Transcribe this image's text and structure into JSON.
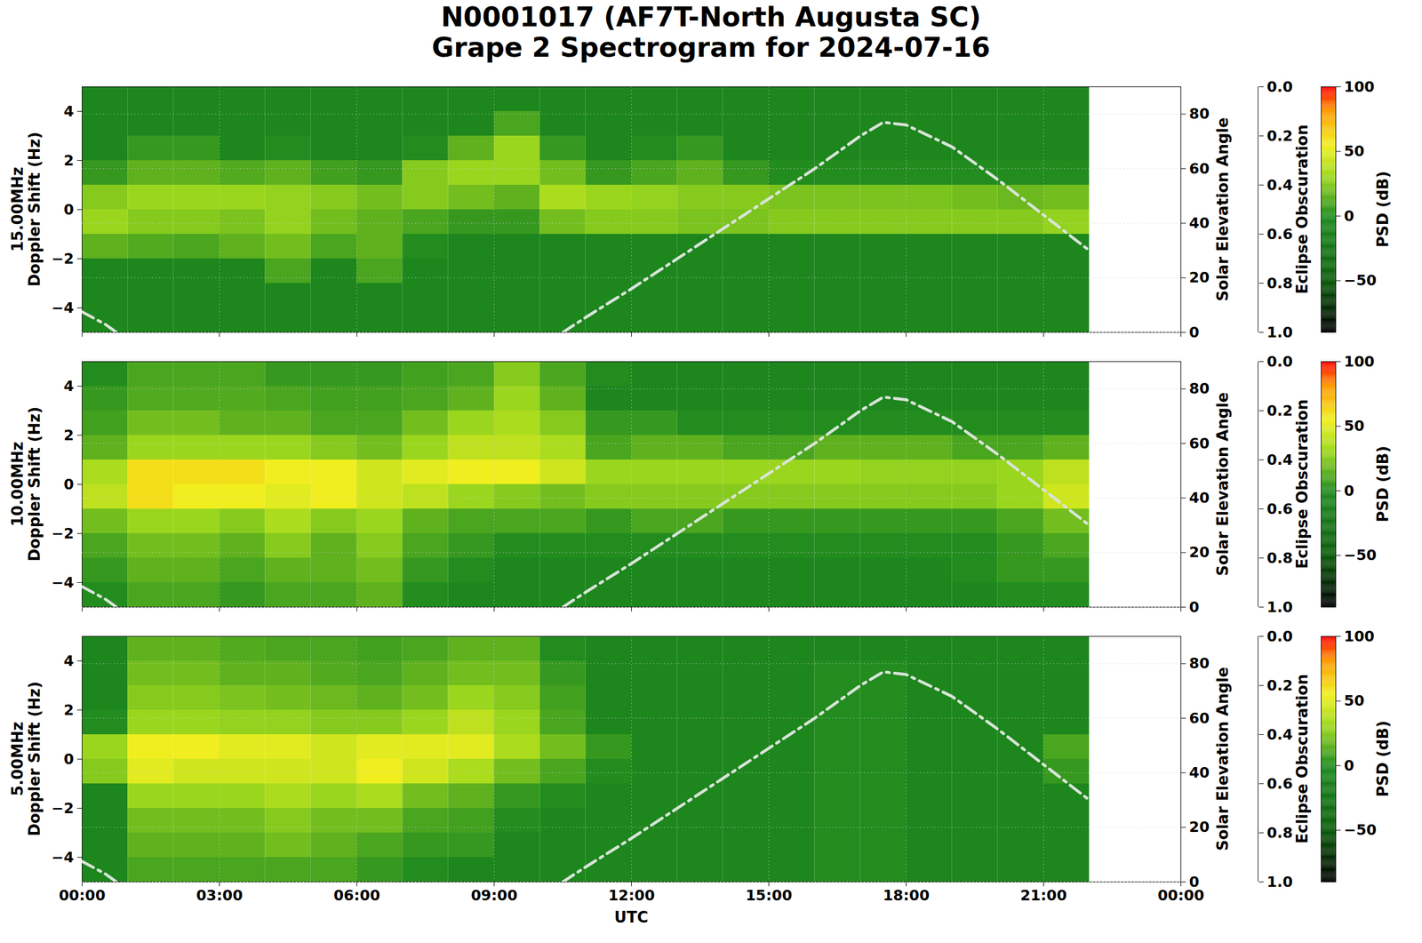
{
  "title": "N0001017 (AF7T-North Augusta SC)",
  "subtitle": "Grape 2 Spectrogram for 2024-07-16",
  "chart_data": [
    {
      "type": "heatmap",
      "frequency": "15.00MHz",
      "ylabel": "Doppler Shift (Hz)",
      "xlim": [
        0,
        24
      ],
      "xticks": [
        0,
        3,
        6,
        9,
        12,
        15,
        18,
        21,
        24
      ],
      "tick_labels": "y",
      "ylim": [
        -5,
        5
      ],
      "yticks": [
        -4,
        -2,
        0,
        2,
        4
      ],
      "y2label": "Solar Elevation Angle",
      "y2lim": [
        0,
        90
      ],
      "y2ticks": [
        0,
        20,
        40,
        60,
        80
      ],
      "grid": true,
      "time_bins": [
        0,
        1,
        2,
        3,
        4,
        5,
        6,
        7,
        8,
        9,
        10,
        11,
        12,
        13,
        14,
        15,
        16,
        17,
        18,
        19,
        20,
        21,
        22
      ],
      "doppler_bins": [
        5,
        4,
        3,
        2,
        1,
        0,
        -1,
        -2,
        -3,
        -4,
        -5
      ],
      "psd": [
        [
          -5,
          -5,
          -5,
          -5,
          -5,
          -5,
          -5,
          -5,
          -5,
          -5,
          -5,
          -5,
          -5,
          -5,
          -5,
          -5,
          -5,
          -5,
          -5,
          -5,
          -5,
          -5
        ],
        [
          -5,
          -5,
          -5,
          -5,
          -5,
          -5,
          -5,
          -5,
          -5,
          10,
          -5,
          -5,
          -5,
          -5,
          -5,
          -5,
          -5,
          -5,
          -5,
          -5,
          -5,
          -5
        ],
        [
          -5,
          5,
          5,
          -5,
          0,
          -5,
          -5,
          0,
          15,
          30,
          5,
          -5,
          0,
          5,
          -5,
          -5,
          -5,
          -5,
          -5,
          -5,
          -5,
          -5
        ],
        [
          5,
          15,
          15,
          12,
          15,
          8,
          5,
          25,
          30,
          30,
          20,
          5,
          10,
          15,
          5,
          0,
          0,
          0,
          0,
          0,
          0,
          0
        ],
        [
          25,
          30,
          30,
          30,
          28,
          25,
          20,
          25,
          20,
          15,
          35,
          30,
          28,
          25,
          25,
          22,
          22,
          22,
          22,
          20,
          18,
          20
        ],
        [
          30,
          25,
          25,
          22,
          28,
          20,
          15,
          10,
          5,
          5,
          20,
          25,
          25,
          22,
          22,
          25,
          25,
          25,
          25,
          25,
          25,
          28
        ],
        [
          15,
          12,
          10,
          15,
          20,
          10,
          15,
          0,
          -5,
          -5,
          -5,
          -5,
          -5,
          -5,
          -5,
          -5,
          -5,
          -5,
          -5,
          -5,
          -5,
          -5
        ],
        [
          -5,
          -5,
          -5,
          -5,
          10,
          -5,
          10,
          -5,
          -5,
          -5,
          -5,
          -5,
          -5,
          -5,
          -5,
          -5,
          -5,
          -5,
          -5,
          -5,
          -5,
          -5
        ],
        [
          -5,
          -5,
          -5,
          -5,
          -5,
          -5,
          -5,
          -5,
          -5,
          -5,
          -5,
          -5,
          -5,
          -5,
          -5,
          -5,
          -5,
          -5,
          -5,
          -5,
          -5,
          -5
        ],
        [
          -5,
          -5,
          -5,
          -5,
          -5,
          -5,
          -5,
          -5,
          -5,
          -5,
          -5,
          -5,
          -5,
          -5,
          -5,
          -5,
          -5,
          -5,
          -5,
          -5,
          -5,
          -5
        ]
      ],
      "solar_elevation": {
        "color": "#d9e4d9",
        "line_style": "dashdot",
        "x": [
          0,
          0.5,
          0.75,
          1,
          10.5,
          11,
          12,
          13,
          14,
          15,
          16,
          17,
          17.5,
          18,
          19,
          20,
          21,
          22
        ],
        "values": [
          7.5,
          3,
          0,
          null,
          0,
          5.5,
          16,
          27,
          38,
          49,
          60,
          72,
          77,
          76,
          68,
          56,
          43,
          30
        ]
      },
      "eclipse_axis": {
        "label": "Eclipse Obscuration",
        "lim": [
          1,
          0
        ],
        "ticks": [
          {
            "value": 0,
            "label": "0.0"
          },
          {
            "value": 0.2,
            "label": "0.2"
          },
          {
            "value": 0.4,
            "label": "0.4"
          },
          {
            "value": 0.6,
            "label": "0.6"
          },
          {
            "value": 0.8,
            "label": "0.8"
          },
          {
            "value": 1,
            "label": "1.0"
          }
        ]
      },
      "colorbar": {
        "label": "PSD (dB)",
        "lim": [
          -90,
          100
        ],
        "ticks": [
          -50,
          0,
          50,
          100
        ]
      }
    },
    {
      "type": "heatmap",
      "frequency": "10.00MHz",
      "ylabel": "Doppler Shift (Hz)",
      "xlim": [
        0,
        24
      ],
      "xticks": [
        0,
        3,
        6,
        9,
        12,
        15,
        18,
        21,
        24
      ],
      "tick_labels": "y",
      "ylim": [
        -5,
        5
      ],
      "yticks": [
        -4,
        -2,
        0,
        2,
        4
      ],
      "y2label": "Solar Elevation Angle",
      "y2lim": [
        0,
        90
      ],
      "y2ticks": [
        0,
        20,
        40,
        60,
        80
      ],
      "grid": true,
      "time_bins": [
        0,
        1,
        2,
        3,
        4,
        5,
        6,
        7,
        8,
        9,
        10,
        11,
        12,
        13,
        14,
        15,
        16,
        17,
        18,
        19,
        20,
        21,
        22
      ],
      "doppler_bins": [
        5,
        4,
        3,
        2,
        1,
        0,
        -1,
        -2,
        -3,
        -4,
        -5
      ],
      "psd": [
        [
          0,
          10,
          10,
          10,
          5,
          5,
          5,
          8,
          10,
          25,
          10,
          0,
          -5,
          -5,
          -5,
          -5,
          -5,
          -5,
          -5,
          -5,
          -5,
          -5
        ],
        [
          5,
          12,
          12,
          12,
          10,
          8,
          8,
          10,
          15,
          30,
          15,
          -5,
          -5,
          -5,
          -5,
          -5,
          -5,
          -5,
          -5,
          -5,
          -5,
          -5
        ],
        [
          8,
          20,
          20,
          15,
          15,
          10,
          10,
          20,
          30,
          35,
          25,
          5,
          5,
          0,
          0,
          0,
          0,
          0,
          0,
          0,
          0,
          0
        ],
        [
          15,
          30,
          30,
          30,
          30,
          25,
          20,
          30,
          40,
          40,
          35,
          10,
          15,
          15,
          10,
          10,
          15,
          15,
          15,
          10,
          10,
          15
        ],
        [
          35,
          60,
          60,
          60,
          55,
          55,
          45,
          50,
          55,
          55,
          45,
          30,
          30,
          30,
          30,
          30,
          30,
          28,
          28,
          28,
          30,
          40
        ],
        [
          40,
          60,
          55,
          55,
          50,
          55,
          45,
          40,
          30,
          25,
          20,
          25,
          25,
          25,
          25,
          25,
          25,
          25,
          25,
          25,
          30,
          45
        ],
        [
          20,
          30,
          30,
          25,
          35,
          25,
          30,
          15,
          10,
          10,
          10,
          5,
          10,
          10,
          5,
          5,
          5,
          5,
          5,
          5,
          10,
          20
        ],
        [
          10,
          20,
          20,
          15,
          25,
          15,
          25,
          10,
          5,
          0,
          0,
          0,
          0,
          0,
          0,
          0,
          0,
          0,
          0,
          0,
          5,
          10
        ],
        [
          5,
          15,
          15,
          10,
          15,
          15,
          20,
          5,
          0,
          -5,
          -5,
          -5,
          -5,
          -5,
          -5,
          -5,
          -5,
          -5,
          -5,
          0,
          5,
          5
        ],
        [
          0,
          10,
          10,
          5,
          10,
          10,
          15,
          0,
          -5,
          -5,
          -5,
          -5,
          -5,
          -5,
          -5,
          -5,
          -5,
          -5,
          -5,
          -5,
          0,
          0
        ]
      ],
      "solar_elevation": {
        "color": "#d9e4d9",
        "line_style": "dashdot",
        "x": [
          0,
          0.5,
          0.75,
          1,
          10.5,
          11,
          12,
          13,
          14,
          15,
          16,
          17,
          17.5,
          18,
          19,
          20,
          21,
          22
        ],
        "values": [
          7.5,
          3,
          0,
          null,
          0,
          5.5,
          16,
          27,
          38,
          49,
          60,
          72,
          77,
          76,
          68,
          56,
          43,
          30
        ]
      },
      "eclipse_axis": {
        "label": "Eclipse Obscuration",
        "lim": [
          1,
          0
        ],
        "ticks": [
          {
            "value": 0,
            "label": "0.0"
          },
          {
            "value": 0.2,
            "label": "0.2"
          },
          {
            "value": 0.4,
            "label": "0.4"
          },
          {
            "value": 0.6,
            "label": "0.6"
          },
          {
            "value": 0.8,
            "label": "0.8"
          },
          {
            "value": 1,
            "label": "1.0"
          }
        ]
      },
      "colorbar": {
        "label": "PSD (dB)",
        "lim": [
          -90,
          100
        ],
        "ticks": [
          -50,
          0,
          50,
          100
        ]
      }
    },
    {
      "type": "heatmap",
      "frequency": "5.00MHz",
      "ylabel": "Doppler Shift (Hz)",
      "xlabel": "UTC",
      "xlim": [
        0,
        24
      ],
      "xticks": [
        {
          "value": 0,
          "label": "00:00"
        },
        {
          "value": 3,
          "label": "03:00"
        },
        {
          "value": 6,
          "label": "06:00"
        },
        {
          "value": 9,
          "label": "09:00"
        },
        {
          "value": 12,
          "label": "12:00"
        },
        {
          "value": 15,
          "label": "15:00"
        },
        {
          "value": 18,
          "label": "18:00"
        },
        {
          "value": 21,
          "label": "21:00"
        },
        {
          "value": 24,
          "label": "00:00"
        }
      ],
      "ylim": [
        -5,
        5
      ],
      "yticks": [
        -4,
        -2,
        0,
        2,
        4
      ],
      "y2label": "Solar Elevation Angle",
      "y2lim": [
        0,
        90
      ],
      "y2ticks": [
        0,
        20,
        40,
        60,
        80
      ],
      "grid": true,
      "time_bins": [
        0,
        1,
        2,
        3,
        4,
        5,
        6,
        7,
        8,
        9,
        10,
        11,
        12,
        13,
        14,
        15,
        16,
        17,
        18,
        19,
        20,
        21,
        22
      ],
      "doppler_bins": [
        5,
        4,
        3,
        2,
        1,
        0,
        -1,
        -2,
        -3,
        -4,
        -5
      ],
      "psd": [
        [
          -5,
          15,
          15,
          12,
          10,
          10,
          8,
          10,
          15,
          15,
          0,
          -5,
          -5,
          -5,
          -5,
          -5,
          -5,
          -5,
          -5,
          -5,
          -5,
          -5
        ],
        [
          -5,
          20,
          20,
          15,
          15,
          12,
          10,
          15,
          20,
          20,
          5,
          -5,
          -5,
          -5,
          -5,
          -5,
          0,
          0,
          -5,
          -5,
          -5,
          -5
        ],
        [
          -5,
          25,
          25,
          22,
          20,
          18,
          15,
          20,
          30,
          25,
          8,
          -5,
          -5,
          -5,
          -5,
          -5,
          0,
          0,
          -5,
          -5,
          -5,
          -5
        ],
        [
          0,
          30,
          30,
          28,
          28,
          25,
          25,
          30,
          40,
          30,
          10,
          -5,
          -5,
          -5,
          -5,
          -5,
          0,
          0,
          -5,
          -5,
          -5,
          -5
        ],
        [
          30,
          55,
          55,
          50,
          50,
          45,
          50,
          50,
          50,
          35,
          20,
          5,
          -5,
          -5,
          -5,
          -5,
          0,
          0,
          -5,
          -5,
          -5,
          10
        ],
        [
          25,
          50,
          45,
          45,
          45,
          45,
          55,
          45,
          35,
          20,
          10,
          0,
          -5,
          -5,
          -5,
          -5,
          0,
          0,
          -5,
          -5,
          -5,
          5
        ],
        [
          -5,
          30,
          30,
          30,
          35,
          30,
          35,
          20,
          15,
          5,
          0,
          -5,
          -5,
          -5,
          -5,
          -5,
          0,
          0,
          -5,
          -5,
          -5,
          -5
        ],
        [
          -5,
          20,
          20,
          20,
          25,
          20,
          20,
          10,
          8,
          0,
          -5,
          -5,
          -5,
          -5,
          -5,
          -5,
          0,
          0,
          -5,
          -5,
          -5,
          -5
        ],
        [
          -5,
          15,
          15,
          15,
          20,
          15,
          10,
          5,
          5,
          -5,
          -5,
          -5,
          -5,
          -5,
          -5,
          -5,
          0,
          0,
          -5,
          -5,
          -5,
          -5
        ],
        [
          -5,
          10,
          10,
          10,
          10,
          10,
          5,
          0,
          -5,
          -5,
          -5,
          -5,
          -5,
          -5,
          -5,
          -5,
          0,
          0,
          -5,
          -5,
          -5,
          -5
        ]
      ],
      "solar_elevation": {
        "color": "#d9e4d9",
        "line_style": "dashdot",
        "x": [
          0,
          0.5,
          0.75,
          1,
          10.5,
          11,
          12,
          13,
          14,
          15,
          16,
          17,
          17.5,
          18,
          19,
          20,
          21,
          22
        ],
        "values": [
          7.5,
          3,
          0,
          null,
          0,
          5.5,
          16,
          27,
          38,
          49,
          60,
          72,
          77,
          76,
          68,
          56,
          43,
          30
        ]
      },
      "eclipse_axis": {
        "label": "Eclipse Obscuration",
        "lim": [
          1,
          0
        ],
        "ticks": [
          {
            "value": 0,
            "label": "0.0"
          },
          {
            "value": 0.2,
            "label": "0.2"
          },
          {
            "value": 0.4,
            "label": "0.4"
          },
          {
            "value": 0.6,
            "label": "0.6"
          },
          {
            "value": 0.8,
            "label": "0.8"
          },
          {
            "value": 1,
            "label": "1.0"
          }
        ]
      },
      "colorbar": {
        "label": "PSD (dB)",
        "lim": [
          -90,
          100
        ],
        "ticks": [
          -50,
          0,
          50,
          100
        ]
      }
    }
  ]
}
